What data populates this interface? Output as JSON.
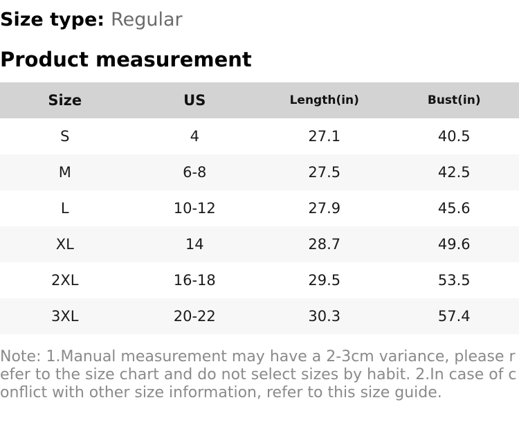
{
  "header": {
    "size_type_label": "Size type:",
    "size_type_value": "Regular",
    "section_title": "Product measurement"
  },
  "table": {
    "columns": [
      "Size",
      "US",
      "Length(in)",
      "Bust(in)"
    ],
    "rows": [
      [
        "S",
        "4",
        "27.1",
        "40.5"
      ],
      [
        "M",
        "6-8",
        "27.5",
        "42.5"
      ],
      [
        "L",
        "10-12",
        "27.9",
        "45.6"
      ],
      [
        "XL",
        "14",
        "28.7",
        "49.6"
      ],
      [
        "2XL",
        "16-18",
        "29.5",
        "53.5"
      ],
      [
        "3XL",
        "20-22",
        "30.3",
        "57.4"
      ]
    ]
  },
  "note_text": "Note: 1.Manual measurement may have a 2-3cm variance, please refer to the size chart and do not select sizes by habit. 2.In case of conflict with other size information, refer to this size guide.",
  "colors": {
    "header_bg": "#d3d3d3",
    "row_alt_bg": "#f7f7f7",
    "muted_text": "#6b6b6b",
    "note_text": "#8a8a8a"
  }
}
